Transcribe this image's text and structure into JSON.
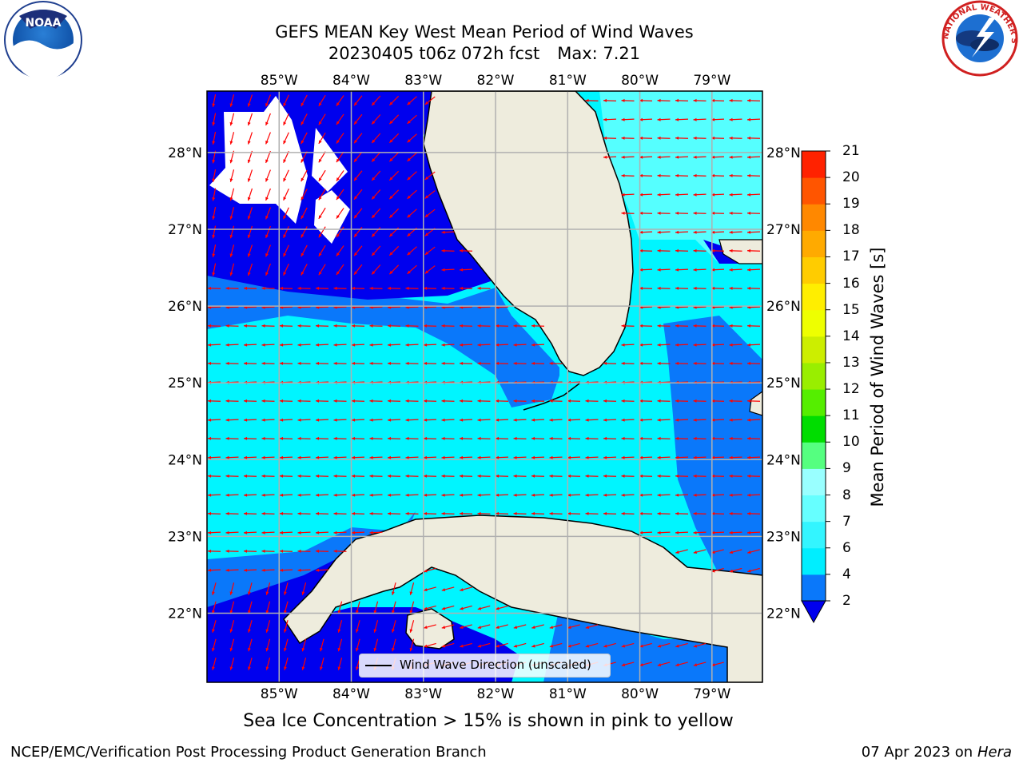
{
  "title": {
    "line1": "GEFS MEAN Key West Mean Period of Wind Waves",
    "run": "20230405 t06z 072h fcst",
    "max": "Max: 7.21"
  },
  "map": {
    "lon_labels": [
      "85°W",
      "84°W",
      "83°W",
      "82°W",
      "81°W",
      "80°W",
      "79°W"
    ],
    "lat_labels": [
      "28°N",
      "27°N",
      "26°N",
      "25°N",
      "24°N",
      "23°N",
      "22°N"
    ],
    "extent": {
      "lon": [
        -86.0,
        -78.3
      ],
      "lat": [
        21.1,
        28.8
      ]
    },
    "legend_label": "Wind Wave Direction (unscaled)",
    "colors": {
      "land": "#eeecdd",
      "deep_blue": "#0000ee",
      "mid_blue": "#0a78fa",
      "cyan": "#00f5ff",
      "light_cyan": "#55ffff",
      "arrow": "#ff0000",
      "grid": "#b0b0b0"
    }
  },
  "colorbar": {
    "title": "Mean Period of Wind Waves [s]",
    "ticks": [
      "2",
      "4",
      "6",
      "7",
      "8",
      "9",
      "10",
      "11",
      "12",
      "13",
      "14",
      "15",
      "16",
      "17",
      "18",
      "19",
      "20",
      "21"
    ],
    "colors": [
      "#0a78fa",
      "#00eeff",
      "#33f5ff",
      "#66ffff",
      "#99ffff",
      "#55ff80",
      "#00dd00",
      "#55ee00",
      "#99ee00",
      "#ccee00",
      "#eeff00",
      "#ffee00",
      "#ffcc00",
      "#ffaa00",
      "#ff8800",
      "#ff5500",
      "#ff2200",
      "#ff0000"
    ],
    "under_color": "#0000ee"
  },
  "ice_note": "Sea Ice Concentration > 15% is shown in pink to yellow",
  "footer": {
    "left": "NCEP/EMC/Verification Post Processing Product Generation Branch",
    "date": "07 Apr 2023 on ",
    "host": "Hera"
  },
  "logos": {
    "noaa": "NOAA",
    "nws": "NATIONAL WEATHER SERVICE"
  }
}
